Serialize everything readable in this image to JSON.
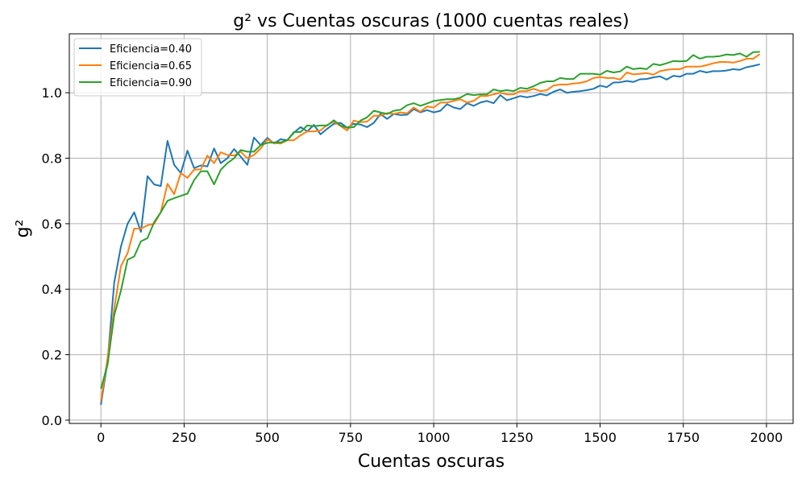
{
  "chart_data": {
    "type": "line",
    "title": "g² vs Cuentas oscuras (1000 cuentas reales)",
    "xlabel": "Cuentas oscuras",
    "ylabel": "g²",
    "xlim": [
      -95,
      2080
    ],
    "ylim": [
      -0.01,
      1.18
    ],
    "xticks": [
      0,
      250,
      500,
      750,
      1000,
      1250,
      1500,
      1750,
      2000
    ],
    "yticks": [
      0.0,
      0.2,
      0.4,
      0.6,
      0.8,
      1.0
    ],
    "xtick_labels": [
      "0",
      "250",
      "500",
      "750",
      "1000",
      "1250",
      "1500",
      "1750",
      "2000"
    ],
    "ytick_labels": [
      "0.0",
      "0.2",
      "0.4",
      "0.6",
      "0.8",
      "1.0"
    ],
    "grid": true,
    "legend_position": "top-left",
    "x": [
      0,
      20,
      40,
      60,
      80,
      100,
      120,
      140,
      160,
      180,
      200,
      220,
      240,
      260,
      280,
      300,
      320,
      340,
      360,
      380,
      400,
      420,
      440,
      460,
      480,
      500,
      520,
      540,
      560,
      580,
      600,
      620,
      640,
      660,
      680,
      700,
      720,
      740,
      760,
      780,
      800,
      820,
      840,
      860,
      880,
      900,
      920,
      940,
      960,
      980,
      1000,
      1020,
      1040,
      1060,
      1080,
      1100,
      1120,
      1140,
      1160,
      1180,
      1200,
      1220,
      1240,
      1260,
      1280,
      1300,
      1320,
      1340,
      1360,
      1380,
      1400,
      1420,
      1440,
      1460,
      1480,
      1500,
      1520,
      1540,
      1560,
      1580,
      1600,
      1620,
      1640,
      1660,
      1680,
      1700,
      1720,
      1740,
      1760,
      1780,
      1800,
      1820,
      1840,
      1860,
      1880,
      1900,
      1920,
      1940,
      1960,
      1980
    ],
    "series": [
      {
        "name": "Eficiencia=0.40",
        "color": "#1f77b4",
        "values": [
          0.047,
          0.18,
          0.42,
          0.53,
          0.6,
          0.635,
          0.575,
          0.745,
          0.72,
          0.715,
          0.853,
          0.78,
          0.755,
          0.823,
          0.77,
          0.778,
          0.775,
          0.83,
          0.785,
          0.8,
          0.828,
          0.805,
          0.78,
          0.863,
          0.84,
          0.862,
          0.845,
          0.858,
          0.855,
          0.878,
          0.895,
          0.882,
          0.902,
          0.873,
          0.89,
          0.905,
          0.908,
          0.893,
          0.905,
          0.903,
          0.895,
          0.908,
          0.935,
          0.92,
          0.935,
          0.932,
          0.933,
          0.95,
          0.94,
          0.947,
          0.94,
          0.945,
          0.965,
          0.955,
          0.95,
          0.968,
          0.96,
          0.97,
          0.975,
          0.968,
          0.993,
          0.977,
          0.983,
          0.99,
          0.986,
          0.99,
          0.996,
          0.992,
          1.003,
          1.01,
          1.0,
          1.003,
          1.005,
          1.008,
          1.012,
          1.022,
          1.017,
          1.031,
          1.032,
          1.036,
          1.033,
          1.041,
          1.042,
          1.047,
          1.05,
          1.04,
          1.052,
          1.049,
          1.058,
          1.058,
          1.067,
          1.062,
          1.066,
          1.066,
          1.068,
          1.072,
          1.07,
          1.078,
          1.082,
          1.087
        ]
      },
      {
        "name": "Eficiencia=0.65",
        "color": "#ff7f0e",
        "values": [
          0.058,
          0.19,
          0.34,
          0.47,
          0.51,
          0.585,
          0.585,
          0.595,
          0.6,
          0.635,
          0.722,
          0.69,
          0.755,
          0.74,
          0.765,
          0.766,
          0.808,
          0.785,
          0.818,
          0.81,
          0.808,
          0.82,
          0.8,
          0.81,
          0.83,
          0.858,
          0.846,
          0.845,
          0.855,
          0.855,
          0.87,
          0.882,
          0.882,
          0.885,
          0.902,
          0.912,
          0.898,
          0.885,
          0.915,
          0.91,
          0.912,
          0.93,
          0.93,
          0.938,
          0.935,
          0.94,
          0.937,
          0.955,
          0.942,
          0.958,
          0.955,
          0.97,
          0.97,
          0.975,
          0.98,
          0.97,
          0.975,
          0.99,
          0.99,
          0.995,
          1.0,
          0.995,
          0.995,
          1.005,
          1.005,
          1.012,
          1.005,
          1.008,
          1.022,
          1.025,
          1.025,
          1.028,
          1.03,
          1.035,
          1.045,
          1.048,
          1.045,
          1.045,
          1.04,
          1.062,
          1.056,
          1.058,
          1.06,
          1.055,
          1.066,
          1.07,
          1.072,
          1.072,
          1.08,
          1.08,
          1.08,
          1.084,
          1.09,
          1.094,
          1.094,
          1.092,
          1.097,
          1.104,
          1.104,
          1.118
        ]
      },
      {
        "name": "Eficiencia=0.90",
        "color": "#2ca02c",
        "values": [
          0.096,
          0.17,
          0.32,
          0.395,
          0.49,
          0.5,
          0.546,
          0.556,
          0.605,
          0.635,
          0.67,
          0.678,
          0.685,
          0.692,
          0.733,
          0.76,
          0.76,
          0.72,
          0.765,
          0.785,
          0.8,
          0.825,
          0.82,
          0.82,
          0.84,
          0.847,
          0.848,
          0.848,
          0.855,
          0.88,
          0.88,
          0.9,
          0.898,
          0.9,
          0.9,
          0.916,
          0.9,
          0.893,
          0.895,
          0.915,
          0.925,
          0.945,
          0.94,
          0.935,
          0.945,
          0.948,
          0.962,
          0.968,
          0.96,
          0.967,
          0.975,
          0.978,
          0.98,
          0.98,
          0.985,
          0.996,
          0.993,
          0.995,
          0.995,
          1.01,
          1.005,
          1.008,
          1.005,
          1.015,
          1.012,
          1.02,
          1.03,
          1.035,
          1.035,
          1.045,
          1.042,
          1.042,
          1.058,
          1.058,
          1.058,
          1.055,
          1.067,
          1.062,
          1.065,
          1.08,
          1.072,
          1.075,
          1.072,
          1.088,
          1.084,
          1.09,
          1.097,
          1.096,
          1.097,
          1.115,
          1.104,
          1.11,
          1.11,
          1.112,
          1.117,
          1.115,
          1.12,
          1.11,
          1.124,
          1.125
        ]
      }
    ]
  }
}
